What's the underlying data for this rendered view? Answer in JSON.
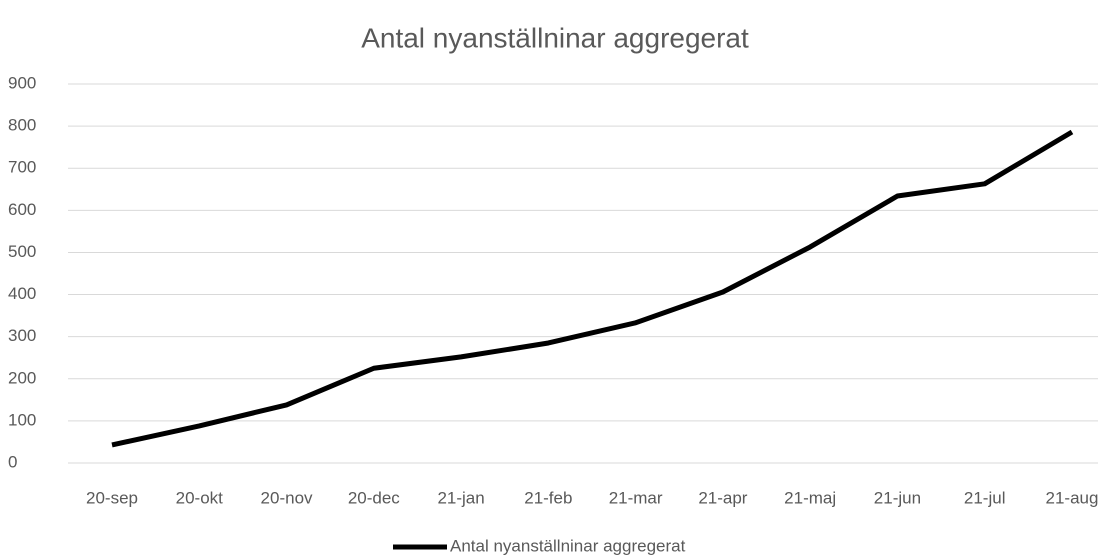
{
  "chart_data": {
    "type": "line",
    "title": "Antal nyanställninar aggregerat",
    "categories": [
      "20-sep",
      "20-okt",
      "20-nov",
      "20-dec",
      "21-jan",
      "21-feb",
      "21-mar",
      "21-apr",
      "21-maj",
      "21-jun",
      "21-jul",
      "21-aug"
    ],
    "series": [
      {
        "name": "Antal nyanställninar aggregerat",
        "color": "#000000",
        "values": [
          43,
          88,
          138,
          225,
          252,
          285,
          333,
          406,
          513,
          634,
          663,
          786
        ]
      }
    ],
    "ylim": [
      0,
      900
    ],
    "yticks": [
      0,
      100,
      200,
      300,
      400,
      500,
      600,
      700,
      800,
      900
    ],
    "grid": true,
    "legend": "bottom"
  }
}
